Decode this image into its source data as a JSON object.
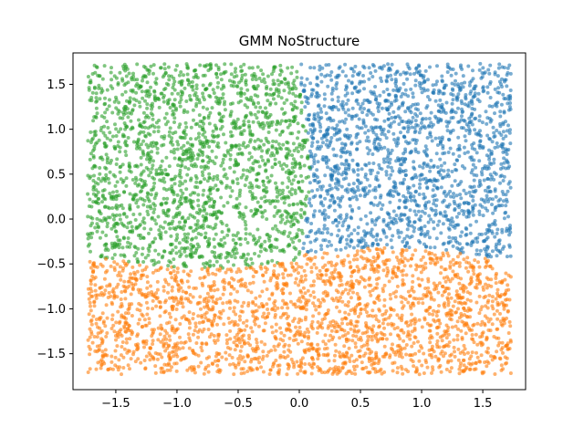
{
  "chart_data": {
    "type": "scatter",
    "title": "GMM NoStructure",
    "xlabel": "",
    "ylabel": "",
    "xlim": [
      -1.85,
      1.85
    ],
    "ylim": [
      -1.9,
      1.85
    ],
    "xticks": [
      -1.5,
      -1.0,
      -0.5,
      0.0,
      0.5,
      1.0,
      1.5
    ],
    "yticks": [
      -1.5,
      -1.0,
      -0.5,
      0.0,
      0.5,
      1.0,
      1.5
    ],
    "xtick_labels": [
      "−1.5",
      "−1.0",
      "−0.5",
      "0.0",
      "0.5",
      "1.0",
      "1.5"
    ],
    "ytick_labels": [
      "−1.5",
      "−1.0",
      "−0.5",
      "0.0",
      "0.5",
      "1.0",
      "1.5"
    ],
    "grid": false,
    "legend": "none",
    "data_domain": {
      "x": [
        -1.73,
        1.73
      ],
      "y": [
        -1.73,
        1.73
      ]
    },
    "series": [
      {
        "color": "#1f77b4",
        "x_range": [
          0.0,
          1.73
        ],
        "y_range": [
          -0.45,
          1.73
        ],
        "approx_count": 1800
      },
      {
        "color": "#ff7f0e",
        "x_range": [
          -1.73,
          1.73
        ],
        "y_range": [
          -1.73,
          -0.35
        ],
        "approx_count": 2200
      },
      {
        "color": "#2ca02c",
        "x_range": [
          -1.73,
          0.05
        ],
        "y_range": [
          -0.55,
          1.73
        ],
        "approx_count": 2000
      }
    ],
    "point_alpha": 0.6
  }
}
